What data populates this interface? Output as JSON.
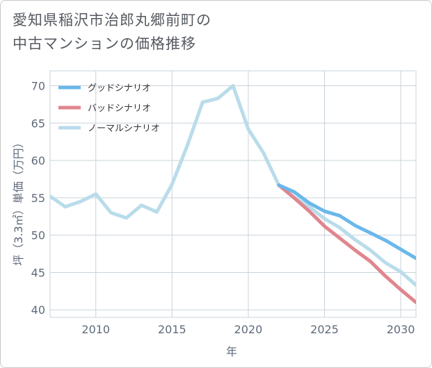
{
  "title_line1": "愛知県稲沢市治郎丸郷前町の",
  "title_line2": "中古マンションの価格推移",
  "chart_data": {
    "type": "line",
    "xlabel": "年",
    "ylabel": "坪（3.3㎡）単価（万円）",
    "xlim": [
      2007,
      2031
    ],
    "ylim": [
      39,
      72
    ],
    "xticks": [
      2010,
      2015,
      2020,
      2025,
      2030
    ],
    "yticks": [
      40,
      45,
      50,
      55,
      60,
      65,
      70
    ],
    "grid": true,
    "legend_position": "top-left",
    "series": [
      {
        "name": "グッドシナリオ",
        "color": "#6bb8ea",
        "x": [
          2022,
          2023,
          2024,
          2025,
          2026,
          2027,
          2028,
          2029,
          2030,
          2031
        ],
        "values": [
          56.7,
          55.8,
          54.3,
          53.2,
          52.6,
          51.3,
          50.3,
          49.3,
          48.1,
          46.9
        ]
      },
      {
        "name": "バッドシナリオ",
        "color": "#e0868e",
        "x": [
          2022,
          2023,
          2024,
          2025,
          2026,
          2027,
          2028,
          2029,
          2030,
          2031
        ],
        "values": [
          56.7,
          55.0,
          53.2,
          51.2,
          49.6,
          48.0,
          46.5,
          44.5,
          42.7,
          41.0
        ]
      },
      {
        "name": "ノーマルシナリオ",
        "color": "#b9dcea",
        "x": [
          2007,
          2008,
          2009,
          2010,
          2011,
          2012,
          2013,
          2014,
          2015,
          2016,
          2017,
          2018,
          2019,
          2020,
          2021,
          2022,
          2023,
          2024,
          2025,
          2026,
          2027,
          2028,
          2029,
          2030,
          2031
        ],
        "values": [
          55.2,
          53.8,
          54.5,
          55.5,
          53.0,
          52.3,
          54.0,
          53.1,
          56.8,
          62.0,
          67.8,
          68.3,
          70.0,
          64.2,
          61.0,
          56.7,
          55.1,
          53.8,
          52.2,
          51.0,
          49.4,
          48.0,
          46.3,
          45.1,
          43.3
        ]
      }
    ]
  }
}
